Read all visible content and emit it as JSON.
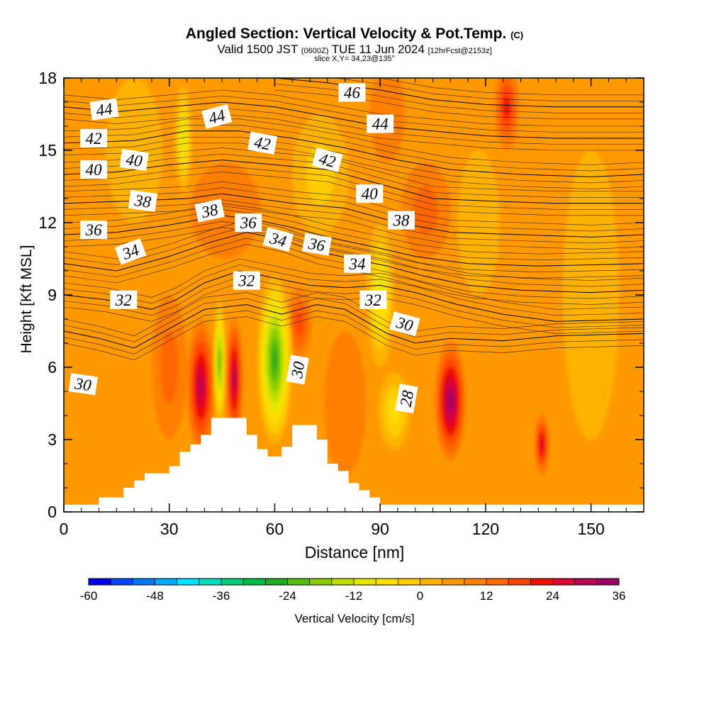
{
  "title": {
    "main": "Angled Section: Vertical Velocity & Pot.Temp.",
    "mark": "(C)",
    "valid_prefix": "Valid 1500 JST",
    "valid_utc": "(0600Z)",
    "valid_date": "TUE 11 Jun 2024",
    "fcst": "[12hrFcst@2153z]",
    "slice": "slice X,Y= 34,23@135°"
  },
  "chart_data": {
    "type": "heatmap",
    "xlabel": "Distance [nm]",
    "ylabel": "Height [Kft MSL]",
    "xlim": [
      0,
      165
    ],
    "ylim": [
      0,
      18
    ],
    "x_ticks": [
      0,
      30,
      60,
      90,
      120,
      150
    ],
    "y_ticks": [
      0,
      3,
      6,
      9,
      12,
      15,
      18
    ],
    "background_value_cms": 4,
    "terrain_kft": [
      [
        0,
        0.3
      ],
      [
        10,
        0.3
      ],
      [
        10,
        0.6
      ],
      [
        17,
        0.6
      ],
      [
        17,
        1.0
      ],
      [
        20,
        1.0
      ],
      [
        20,
        1.3
      ],
      [
        23,
        1.3
      ],
      [
        23,
        1.6
      ],
      [
        30,
        1.6
      ],
      [
        30,
        1.9
      ],
      [
        33,
        1.9
      ],
      [
        33,
        2.5
      ],
      [
        36,
        2.5
      ],
      [
        36,
        2.8
      ],
      [
        39,
        2.8
      ],
      [
        39,
        3.2
      ],
      [
        42,
        3.2
      ],
      [
        42,
        3.9
      ],
      [
        52,
        3.9
      ],
      [
        52,
        3.2
      ],
      [
        55,
        3.2
      ],
      [
        55,
        2.6
      ],
      [
        58,
        2.6
      ],
      [
        58,
        2.3
      ],
      [
        62,
        2.3
      ],
      [
        62,
        2.7
      ],
      [
        65,
        2.7
      ],
      [
        65,
        3.6
      ],
      [
        72,
        3.6
      ],
      [
        72,
        3.0
      ],
      [
        75,
        3.0
      ],
      [
        75,
        2.0
      ],
      [
        78,
        2.0
      ],
      [
        78,
        1.7
      ],
      [
        81,
        1.7
      ],
      [
        81,
        1.2
      ],
      [
        84,
        1.2
      ],
      [
        84,
        0.9
      ],
      [
        87,
        0.9
      ],
      [
        87,
        0.6
      ],
      [
        90,
        0.6
      ],
      [
        90,
        0.3
      ],
      [
        165,
        0.3
      ]
    ],
    "velocity_cells": [
      {
        "x": 39,
        "y": 5.2,
        "rx": 4,
        "ry": 2.8,
        "v": 30
      },
      {
        "x": 48.5,
        "y": 5.5,
        "rx": 2.5,
        "ry": 2.6,
        "v": 30
      },
      {
        "x": 110,
        "y": 4.6,
        "rx": 4.5,
        "ry": 2.5,
        "v": 32
      },
      {
        "x": 136,
        "y": 2.8,
        "rx": 2.2,
        "ry": 1.3,
        "v": 24
      },
      {
        "x": 126,
        "y": 16.8,
        "rx": 3.5,
        "ry": 1.8,
        "v": 20
      },
      {
        "x": 67,
        "y": 7.8,
        "rx": 3.5,
        "ry": 1.5,
        "v": 16
      },
      {
        "x": 30,
        "y": 6.0,
        "rx": 5,
        "ry": 3,
        "v": 12
      },
      {
        "x": 80,
        "y": 4.5,
        "rx": 6,
        "ry": 3,
        "v": 10
      },
      {
        "x": 46,
        "y": 12.5,
        "rx": 10,
        "ry": 2,
        "v": 10
      },
      {
        "x": 103,
        "y": 12.5,
        "rx": 7,
        "ry": 2,
        "v": 12
      },
      {
        "x": 92,
        "y": 16.5,
        "rx": 5,
        "ry": 2,
        "v": 10
      },
      {
        "x": 60,
        "y": 6.3,
        "rx": 5,
        "ry": 3.5,
        "v": -30
      },
      {
        "x": 44.3,
        "y": 6.2,
        "rx": 1.8,
        "ry": 2.6,
        "v": -24
      },
      {
        "x": 90,
        "y": 9.0,
        "rx": 4,
        "ry": 3,
        "v": -14
      },
      {
        "x": 94,
        "y": 4.2,
        "rx": 4.5,
        "ry": 1.6,
        "v": -10
      },
      {
        "x": 34,
        "y": 15.5,
        "rx": 2.5,
        "ry": 2.2,
        "v": -14
      },
      {
        "x": 73,
        "y": 14,
        "rx": 8,
        "ry": 2.5,
        "v": -4
      },
      {
        "x": 20,
        "y": 15,
        "rx": 8,
        "ry": 3,
        "v": -2
      },
      {
        "x": 150,
        "y": 9,
        "rx": 8,
        "ry": 6,
        "v": -2
      },
      {
        "x": 118,
        "y": 12,
        "rx": 6,
        "ry": 3,
        "v": -3
      }
    ],
    "theta_contours": [
      {
        "value": 30,
        "points": [
          [
            0,
            7.5
          ],
          [
            10,
            7.2
          ],
          [
            20,
            6.8
          ],
          [
            30,
            7.6
          ],
          [
            40,
            8.4
          ],
          [
            52,
            8.6
          ],
          [
            62,
            8.2
          ],
          [
            72,
            8.6
          ],
          [
            80,
            8.4
          ],
          [
            92,
            7.4
          ],
          [
            100,
            7.0
          ],
          [
            110,
            7.2
          ],
          [
            125,
            7.1
          ],
          [
            140,
            7.3
          ],
          [
            165,
            7.4
          ]
        ]
      },
      {
        "value": 32,
        "points": [
          [
            0,
            9.0
          ],
          [
            12,
            8.8
          ],
          [
            25,
            8.4
          ],
          [
            32,
            8.8
          ],
          [
            40,
            9.5
          ],
          [
            50,
            10.0
          ],
          [
            60,
            9.7
          ],
          [
            70,
            9.4
          ],
          [
            80,
            9.3
          ],
          [
            90,
            9.4
          ],
          [
            100,
            9.1
          ],
          [
            112,
            8.6
          ],
          [
            125,
            8.2
          ],
          [
            140,
            7.9
          ],
          [
            165,
            8.0
          ]
        ]
      },
      {
        "value": 34,
        "points": [
          [
            0,
            10.3
          ],
          [
            15,
            10.0
          ],
          [
            30,
            10.6
          ],
          [
            42,
            11.2
          ],
          [
            52,
            11.6
          ],
          [
            62,
            11.3
          ],
          [
            72,
            10.8
          ],
          [
            82,
            10.5
          ],
          [
            92,
            10.2
          ],
          [
            102,
            9.8
          ],
          [
            115,
            9.4
          ],
          [
            130,
            9.2
          ],
          [
            150,
            9.1
          ],
          [
            165,
            9.2
          ]
        ]
      },
      {
        "value": 36,
        "points": [
          [
            0,
            11.5
          ],
          [
            15,
            11.6
          ],
          [
            30,
            11.9
          ],
          [
            45,
            12.3
          ],
          [
            55,
            12.1
          ],
          [
            65,
            11.8
          ],
          [
            75,
            11.4
          ],
          [
            88,
            11.0
          ],
          [
            100,
            10.6
          ],
          [
            115,
            10.3
          ],
          [
            135,
            10.2
          ],
          [
            165,
            10.3
          ]
        ]
      },
      {
        "value": 38,
        "points": [
          [
            0,
            12.8
          ],
          [
            20,
            12.9
          ],
          [
            35,
            13.0
          ],
          [
            45,
            13.2
          ],
          [
            55,
            13.0
          ],
          [
            65,
            12.8
          ],
          [
            80,
            12.6
          ],
          [
            95,
            12.0
          ],
          [
            110,
            11.6
          ],
          [
            130,
            11.5
          ],
          [
            150,
            11.4
          ],
          [
            165,
            11.5
          ]
        ]
      },
      {
        "value": 40,
        "points": [
          [
            0,
            14.0
          ],
          [
            15,
            14.1
          ],
          [
            30,
            14.4
          ],
          [
            45,
            14.6
          ],
          [
            60,
            14.4
          ],
          [
            75,
            14.2
          ],
          [
            90,
            13.6
          ],
          [
            105,
            13.0
          ],
          [
            120,
            12.9
          ],
          [
            140,
            12.8
          ],
          [
            165,
            12.8
          ]
        ]
      },
      {
        "value": 42,
        "points": [
          [
            0,
            15.3
          ],
          [
            20,
            15.4
          ],
          [
            35,
            15.8
          ],
          [
            50,
            15.8
          ],
          [
            65,
            15.5
          ],
          [
            80,
            15.1
          ],
          [
            95,
            14.6
          ],
          [
            110,
            14.2
          ],
          [
            130,
            14.0
          ],
          [
            150,
            13.9
          ],
          [
            165,
            14.0
          ]
        ]
      },
      {
        "value": 44,
        "points": [
          [
            0,
            16.8
          ],
          [
            15,
            16.6
          ],
          [
            30,
            16.8
          ],
          [
            45,
            17.0
          ],
          [
            60,
            16.8
          ],
          [
            75,
            16.4
          ],
          [
            90,
            16.0
          ],
          [
            105,
            15.8
          ],
          [
            120,
            15.6
          ],
          [
            140,
            15.5
          ],
          [
            165,
            15.5
          ]
        ]
      },
      {
        "value": 46,
        "points": [
          [
            60,
            18.0
          ],
          [
            75,
            17.8
          ],
          [
            90,
            17.5
          ],
          [
            105,
            17.1
          ],
          [
            120,
            16.9
          ],
          [
            140,
            16.8
          ],
          [
            165,
            16.8
          ]
        ]
      }
    ],
    "thin_contours_offsets": [
      -0.5,
      -0.25,
      0.25,
      0.5
    ],
    "contour_labels": [
      {
        "text": "44",
        "x": 11.5,
        "y": 16.7,
        "rot": -8
      },
      {
        "text": "42",
        "x": 8.5,
        "y": 15.5,
        "rot": 0
      },
      {
        "text": "40",
        "x": 8.5,
        "y": 14.2,
        "rot": 0
      },
      {
        "text": "36",
        "x": 8.5,
        "y": 11.7,
        "rot": 0
      },
      {
        "text": "30",
        "x": 5.5,
        "y": 5.3,
        "rot": 8
      },
      {
        "text": "44",
        "x": 43.5,
        "y": 16.4,
        "rot": -15
      },
      {
        "text": "42",
        "x": 56.5,
        "y": 15.3,
        "rot": 10
      },
      {
        "text": "40",
        "x": 20,
        "y": 14.6,
        "rot": 8
      },
      {
        "text": "38",
        "x": 22.5,
        "y": 12.9,
        "rot": 8
      },
      {
        "text": "38",
        "x": 41.5,
        "y": 12.5,
        "rot": -12
      },
      {
        "text": "36",
        "x": 52.5,
        "y": 12.0,
        "rot": 0
      },
      {
        "text": "34",
        "x": 19,
        "y": 10.8,
        "rot": -20
      },
      {
        "text": "34",
        "x": 61,
        "y": 11.3,
        "rot": 15
      },
      {
        "text": "36",
        "x": 72,
        "y": 11.1,
        "rot": 10
      },
      {
        "text": "32",
        "x": 17,
        "y": 8.8,
        "rot": 0
      },
      {
        "text": "32",
        "x": 52,
        "y": 9.6,
        "rot": 0
      },
      {
        "text": "30",
        "x": 66.5,
        "y": 5.9,
        "rot": -80
      },
      {
        "text": "46",
        "x": 82,
        "y": 17.4,
        "rot": 0
      },
      {
        "text": "44",
        "x": 90,
        "y": 16.1,
        "rot": 0
      },
      {
        "text": "42",
        "x": 75,
        "y": 14.6,
        "rot": 15
      },
      {
        "text": "40",
        "x": 87,
        "y": 13.2,
        "rot": 0
      },
      {
        "text": "38",
        "x": 96,
        "y": 12.1,
        "rot": 0
      },
      {
        "text": "34",
        "x": 83.5,
        "y": 10.3,
        "rot": 0
      },
      {
        "text": "32",
        "x": 88,
        "y": 8.8,
        "rot": 0
      },
      {
        "text": "30",
        "x": 97,
        "y": 7.8,
        "rot": 15
      },
      {
        "text": "28",
        "x": 97.5,
        "y": 4.7,
        "rot": -80
      }
    ],
    "colorbar": {
      "label": "Vertical Velocity [cm/s]",
      "min": -60,
      "max": 36,
      "step": 4,
      "tick_labels": [
        "-60",
        "-48",
        "-36",
        "-24",
        "-12",
        "0",
        "12",
        "24",
        "36"
      ],
      "colors": [
        "#0000ee",
        "#0044ff",
        "#0077ff",
        "#00aaff",
        "#00e5ff",
        "#00ddbb",
        "#00cc77",
        "#00bb44",
        "#22aa22",
        "#55bb11",
        "#88cc00",
        "#bbdd00",
        "#e6e600",
        "#ffdd00",
        "#ffcc00",
        "#ffb300",
        "#ff9900",
        "#ff8000",
        "#ff6600",
        "#ff4400",
        "#ee1100",
        "#dd0033",
        "#bb0055",
        "#990066"
      ]
    }
  }
}
